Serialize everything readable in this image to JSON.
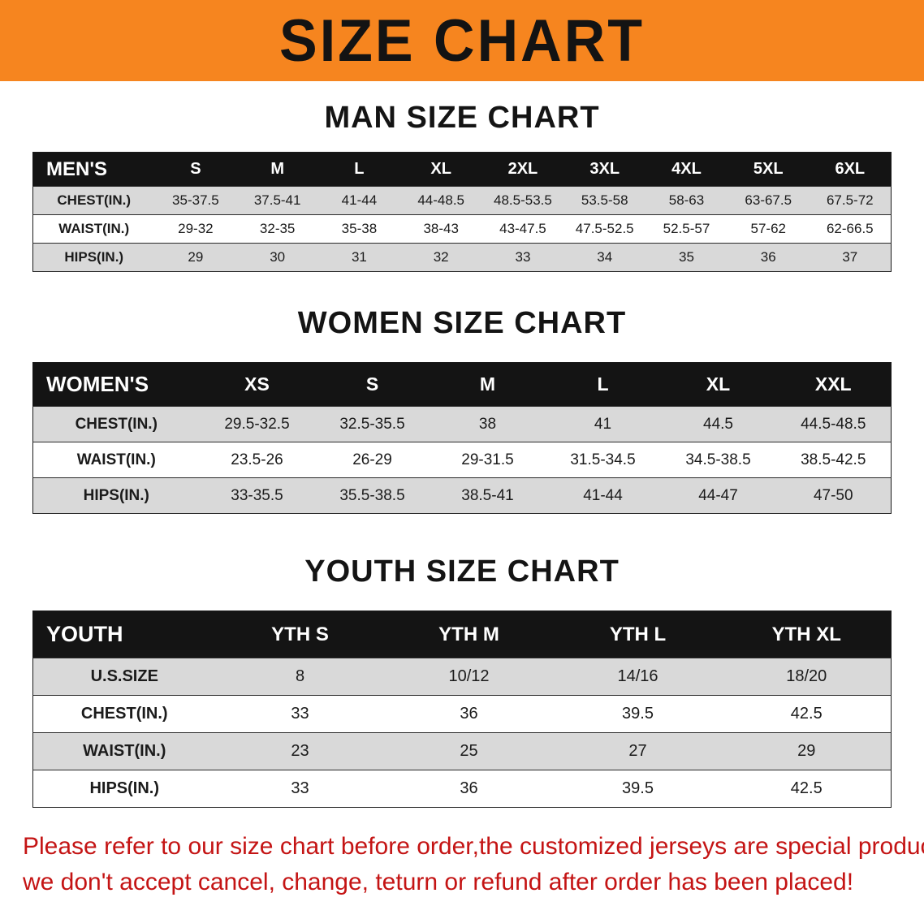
{
  "banner": {
    "title": "SIZE CHART",
    "bg_color": "#f6851f",
    "text_color": "#131313"
  },
  "sections": [
    {
      "heading": "MAN SIZE CHART"
    },
    {
      "heading": "WOMEN SIZE CHART"
    },
    {
      "heading": "YOUTH SIZE CHART"
    }
  ],
  "tables": {
    "men": {
      "header": [
        "MEN'S",
        "S",
        "M",
        "L",
        "XL",
        "2XL",
        "3XL",
        "4XL",
        "5XL",
        "6XL"
      ],
      "rows": [
        [
          "CHEST(IN.)",
          "35-37.5",
          "37.5-41",
          "41-44",
          "44-48.5",
          "48.5-53.5",
          "53.5-58",
          "58-63",
          "63-67.5",
          "67.5-72"
        ],
        [
          "WAIST(IN.)",
          "29-32",
          "32-35",
          "35-38",
          "38-43",
          "43-47.5",
          "47.5-52.5",
          "52.5-57",
          "57-62",
          "62-66.5"
        ],
        [
          "HIPS(IN.)",
          "29",
          "30",
          "31",
          "32",
          "33",
          "34",
          "35",
          "36",
          "37"
        ]
      ]
    },
    "women": {
      "header": [
        "WOMEN'S",
        "XS",
        "S",
        "M",
        "L",
        "XL",
        "XXL"
      ],
      "rows": [
        [
          "CHEST(IN.)",
          "29.5-32.5",
          "32.5-35.5",
          "38",
          "41",
          "44.5",
          "44.5-48.5"
        ],
        [
          "WAIST(IN.)",
          "23.5-26",
          "26-29",
          "29-31.5",
          "31.5-34.5",
          "34.5-38.5",
          "38.5-42.5"
        ],
        [
          "HIPS(IN.)",
          "33-35.5",
          "35.5-38.5",
          "38.5-41",
          "41-44",
          "44-47",
          "47-50"
        ]
      ]
    },
    "youth": {
      "header": [
        "YOUTH",
        "YTH S",
        "YTH M",
        "YTH L",
        "YTH XL"
      ],
      "rows": [
        [
          "U.S.SIZE",
          "8",
          "10/12",
          "14/16",
          "18/20"
        ],
        [
          "CHEST(IN.)",
          "33",
          "36",
          "39.5",
          "42.5"
        ],
        [
          "WAIST(IN.)",
          "23",
          "25",
          "27",
          "29"
        ],
        [
          "HIPS(IN.)",
          "33",
          "36",
          "39.5",
          "42.5"
        ]
      ]
    }
  },
  "footer": {
    "line1": "Please refer to our size chart before order,the customized jerseys are special products,",
    "line2": "we don't accept cancel, change, teturn or refund after order has been placed!",
    "text_color": "#c41414"
  }
}
